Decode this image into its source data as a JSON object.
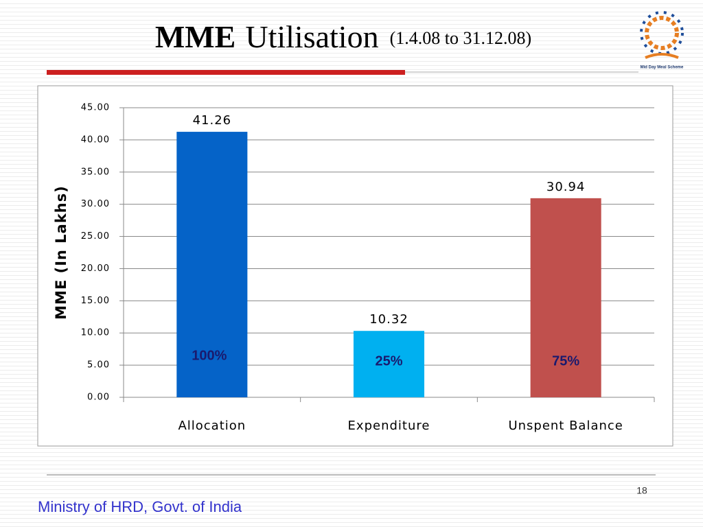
{
  "chart_data": {
    "type": "bar",
    "title": "MME",
    "title_rest": "Utilisation",
    "subtitle": "(1.4.08 to 31.12.08)",
    "y_label": "MME  (In Lakhs)",
    "categories": [
      "Allocation",
      "Expenditure",
      "Unspent Balance"
    ],
    "values": [
      41.26,
      10.32,
      30.94
    ],
    "colors": [
      "#0563c8",
      "#00b0f0",
      "#c0504d"
    ],
    "annotations": [
      "100%",
      "25%",
      "75%"
    ],
    "ylim": [
      0,
      45
    ],
    "yticks": [
      {
        "value": 0,
        "label": "0.00"
      },
      {
        "value": 5,
        "label": "5.00"
      },
      {
        "value": 10,
        "label": "10.00"
      },
      {
        "value": 15,
        "label": "15.00"
      },
      {
        "value": 20,
        "label": "20.00"
      },
      {
        "value": 25,
        "label": "25.00"
      },
      {
        "value": 30,
        "label": "30.00"
      },
      {
        "value": 35,
        "label": "35.00"
      },
      {
        "value": 40,
        "label": "40.00"
      },
      {
        "value": 45,
        "label": "45.00"
      }
    ],
    "grid": true
  },
  "logo": {
    "text": "Mid Day Meal Scheme"
  },
  "footer": {
    "text": "Ministry of HRD, Govt. of India",
    "page": "18"
  }
}
